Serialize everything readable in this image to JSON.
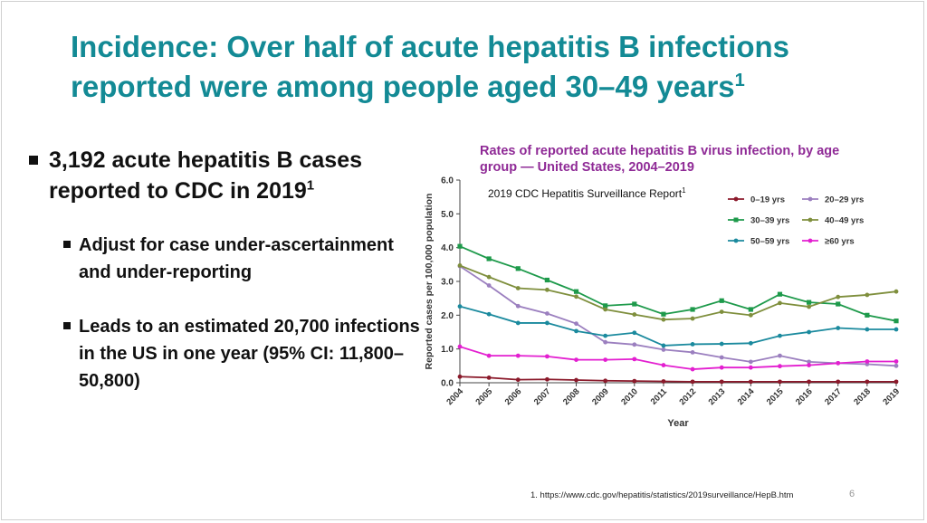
{
  "slide": {
    "title_main": "Incidence: Over half of acute hepatitis B infections reported were among people aged 30–49 years",
    "title_sup": "1",
    "bullet1": {
      "text": "3,192 acute hepatitis B cases reported to CDC in 2019",
      "sup": "1"
    },
    "subbullets": [
      "Adjust for case under-ascertainment and under-reporting",
      "Leads to an estimated 20,700 infections in the US in one year (95% CI: 11,800–50,800)"
    ],
    "footnote": "1. https://www.cdc.gov/hepatitis/statistics/2019surveillance/HepB.htm",
    "page_number": "6"
  },
  "chart_data": {
    "type": "line",
    "title": "Rates of reported acute hepatitis B virus infection, by age group — United States, 2004–2019",
    "annotation": "2019 CDC Hepatitis Surveillance Report",
    "annotation_sup": "1",
    "xlabel": "Year",
    "ylabel": "Reported cases per 100,000 population",
    "ylim": [
      0,
      6
    ],
    "yticks": [
      "0.0",
      "1.0",
      "2.0",
      "3.0",
      "4.0",
      "5.0",
      "6.0"
    ],
    "x": [
      "2004",
      "2005",
      "2006",
      "2007",
      "2008",
      "2009",
      "2010",
      "2011",
      "2012",
      "2013",
      "2014",
      "2015",
      "2016",
      "2017",
      "2018",
      "2019"
    ],
    "legend_position": "top-right",
    "grid": false,
    "series": [
      {
        "name": "0–19 yrs",
        "color": "#8b1a2b",
        "marker": "circle",
        "values": [
          0.18,
          0.15,
          0.09,
          0.1,
          0.08,
          0.06,
          0.05,
          0.04,
          0.03,
          0.03,
          0.03,
          0.03,
          0.03,
          0.03,
          0.03,
          0.03
        ]
      },
      {
        "name": "20–29 yrs",
        "color": "#9b7fbf",
        "marker": "circle",
        "values": [
          3.45,
          2.88,
          2.27,
          2.05,
          1.75,
          1.2,
          1.13,
          0.98,
          0.9,
          0.75,
          0.62,
          0.8,
          0.62,
          0.58,
          0.55,
          0.5
        ]
      },
      {
        "name": "30–39 yrs",
        "color": "#1e9a4b",
        "marker": "square",
        "values": [
          4.04,
          3.67,
          3.38,
          3.04,
          2.7,
          2.28,
          2.33,
          2.03,
          2.17,
          2.43,
          2.17,
          2.62,
          2.38,
          2.33,
          2.0,
          1.83
        ]
      },
      {
        "name": "40–49 yrs",
        "color": "#7f8f3d",
        "marker": "circle",
        "values": [
          3.47,
          3.13,
          2.8,
          2.75,
          2.55,
          2.17,
          2.02,
          1.87,
          1.9,
          2.1,
          2.0,
          2.36,
          2.25,
          2.54,
          2.6,
          2.7
        ]
      },
      {
        "name": "50–59 yrs",
        "color": "#1b8a9e",
        "marker": "circle",
        "values": [
          2.26,
          2.03,
          1.77,
          1.77,
          1.53,
          1.39,
          1.48,
          1.1,
          1.14,
          1.15,
          1.17,
          1.39,
          1.5,
          1.62,
          1.58,
          1.58
        ]
      },
      {
        "name": "≥60 yrs",
        "color": "#e31fd0",
        "marker": "circle",
        "values": [
          1.07,
          0.8,
          0.8,
          0.78,
          0.68,
          0.68,
          0.7,
          0.52,
          0.4,
          0.45,
          0.45,
          0.49,
          0.52,
          0.58,
          0.63,
          0.63
        ]
      }
    ]
  }
}
